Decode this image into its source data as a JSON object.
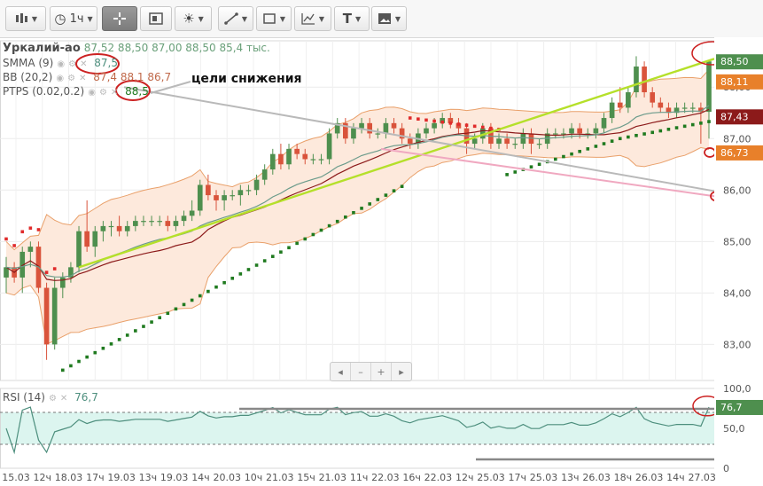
{
  "toolbar": {
    "timeframe_label": "1ч",
    "buttons": [
      "chart-type",
      "timeframe",
      "crosshair",
      "data-window",
      "themes",
      "line-tools",
      "shape-tools",
      "indicators",
      "text-tool",
      "screenshot"
    ]
  },
  "legend": {
    "symbol": "Уркалий-ао",
    "ohlcv": "87,52  88,50  87,00  88,50  85,4 тыс.",
    "smma_label": "SMMA (9)",
    "smma_value": "87,5",
    "bb_label": "BB (20,2)",
    "bb_values": "87,4  88,1  86,7",
    "ptps_label": "PTPS (0.02,0.2)",
    "ptps_value": "88,5",
    "rsi_label": "RSI (14)",
    "rsi_value": "76,7"
  },
  "annotation": "цели снижения",
  "nav": {
    "prev": "◂",
    "minus": "–",
    "plus": "+",
    "next": "▸"
  },
  "colors": {
    "up": "#4e8f4e",
    "down": "#d9533b",
    "band_fill": "#fde9dc",
    "band_line": "#e9a06a",
    "smma": "#6b9b8b",
    "bb_mid": "#8c1a1a",
    "ptps_up": "#1f7a1f",
    "ptps_down": "#e02b2b",
    "trend_yellow": "#b5e02a",
    "trend_gray": "#b9b9b9",
    "trend_pink": "#f0a8c0",
    "marker_red": "#cc2222",
    "arrow_orange": "#e8802a",
    "rsi_line": "#4e8f7e",
    "rsi_fill": "#dcf5ef"
  },
  "chart_data": {
    "type": "candlestick",
    "price_axis": {
      "ticks": [
        "83,00",
        "84,00",
        "85,00",
        "86,00",
        "87,00",
        "88,00"
      ],
      "range": [
        82.3,
        88.9
      ]
    },
    "price_labels": [
      {
        "text": "88,50",
        "value": 88.5,
        "color": "#4e8f4e"
      },
      {
        "text": "88,11",
        "value": 88.11,
        "color": "#e8802a"
      },
      {
        "text": "87,43",
        "value": 87.43,
        "color": "#8c1a1a"
      },
      {
        "text": "86,73",
        "value": 86.73,
        "color": "#e8802a"
      }
    ],
    "x_labels": [
      "15.03",
      "12ч",
      "18.03",
      "17ч",
      "19.03",
      "13ч",
      "19.03",
      "14ч",
      "20.03",
      "10ч",
      "21.03",
      "15ч",
      "21.03",
      "11ч",
      "22.03",
      "16ч",
      "22.03",
      "12ч",
      "25.03",
      "17ч",
      "25.03",
      "13ч",
      "26.03",
      "18ч",
      "26.03",
      "14ч",
      "27.03"
    ],
    "rsi_axis": {
      "ticks": [
        "100,0",
        "50,0",
        "0"
      ],
      "range": [
        0,
        100
      ],
      "levels": [
        70,
        30
      ]
    },
    "ohlc": [
      [
        84.3,
        84.7,
        84.0,
        84.5
      ],
      [
        84.5,
        84.6,
        84.2,
        84.3
      ],
      [
        84.3,
        84.9,
        84.0,
        84.8
      ],
      [
        84.8,
        85.0,
        84.5,
        84.9
      ],
      [
        84.9,
        85.0,
        84.0,
        84.1
      ],
      [
        84.1,
        84.2,
        82.7,
        83.0
      ],
      [
        83.0,
        84.3,
        82.9,
        84.1
      ],
      [
        84.1,
        84.4,
        83.9,
        84.3
      ],
      [
        84.3,
        84.6,
        84.2,
        84.5
      ],
      [
        84.5,
        85.3,
        84.4,
        85.2
      ],
      [
        85.2,
        85.8,
        84.8,
        84.9
      ],
      [
        84.9,
        85.3,
        84.7,
        85.2
      ],
      [
        85.2,
        85.4,
        85.0,
        85.3
      ],
      [
        85.3,
        85.4,
        85.1,
        85.3
      ],
      [
        85.3,
        85.5,
        85.1,
        85.2
      ],
      [
        85.2,
        85.4,
        85.1,
        85.3
      ],
      [
        85.3,
        85.5,
        85.2,
        85.4
      ],
      [
        85.4,
        85.5,
        85.3,
        85.4
      ],
      [
        85.4,
        85.5,
        85.3,
        85.4
      ],
      [
        85.4,
        85.5,
        85.3,
        85.4
      ],
      [
        85.4,
        85.5,
        85.2,
        85.3
      ],
      [
        85.3,
        85.5,
        85.2,
        85.4
      ],
      [
        85.4,
        85.6,
        85.3,
        85.5
      ],
      [
        85.5,
        85.8,
        85.4,
        85.6
      ],
      [
        85.6,
        86.2,
        85.5,
        86.1
      ],
      [
        86.1,
        86.3,
        85.8,
        85.9
      ],
      [
        85.9,
        86.0,
        85.6,
        85.8
      ],
      [
        85.8,
        86.0,
        85.6,
        85.9
      ],
      [
        85.9,
        86.0,
        85.8,
        85.9
      ],
      [
        85.9,
        86.1,
        85.7,
        86.0
      ],
      [
        86.0,
        86.1,
        85.9,
        86.0
      ],
      [
        86.0,
        86.3,
        85.9,
        86.2
      ],
      [
        86.2,
        86.5,
        86.1,
        86.4
      ],
      [
        86.4,
        86.8,
        86.3,
        86.7
      ],
      [
        86.7,
        86.9,
        86.4,
        86.5
      ],
      [
        86.5,
        86.9,
        86.4,
        86.8
      ],
      [
        86.8,
        86.9,
        86.6,
        86.7
      ],
      [
        86.7,
        86.8,
        86.5,
        86.6
      ],
      [
        86.6,
        86.7,
        86.5,
        86.6
      ],
      [
        86.6,
        86.7,
        86.5,
        86.6
      ],
      [
        86.6,
        87.2,
        86.5,
        87.1
      ],
      [
        87.1,
        87.4,
        87.0,
        87.3
      ],
      [
        87.3,
        87.4,
        86.9,
        87.0
      ],
      [
        87.0,
        87.3,
        86.9,
        87.2
      ],
      [
        87.2,
        87.4,
        87.1,
        87.3
      ],
      [
        87.3,
        87.4,
        87.0,
        87.1
      ],
      [
        87.1,
        87.2,
        87.0,
        87.1
      ],
      [
        87.1,
        87.4,
        87.0,
        87.3
      ],
      [
        87.3,
        87.4,
        87.1,
        87.2
      ],
      [
        87.2,
        87.3,
        86.9,
        87.0
      ],
      [
        87.0,
        87.1,
        86.8,
        86.9
      ],
      [
        86.9,
        87.2,
        86.8,
        87.1
      ],
      [
        87.1,
        87.3,
        87.0,
        87.2
      ],
      [
        87.2,
        87.4,
        87.1,
        87.3
      ],
      [
        87.3,
        87.5,
        87.2,
        87.4
      ],
      [
        87.4,
        87.5,
        87.2,
        87.3
      ],
      [
        87.3,
        87.4,
        87.1,
        87.2
      ],
      [
        87.2,
        87.3,
        86.7,
        86.9
      ],
      [
        86.9,
        87.1,
        86.8,
        87.0
      ],
      [
        87.0,
        87.3,
        86.9,
        87.2
      ],
      [
        87.2,
        87.3,
        86.8,
        86.9
      ],
      [
        86.9,
        87.1,
        86.8,
        87.0
      ],
      [
        87.0,
        87.1,
        86.8,
        86.9
      ],
      [
        86.9,
        87.0,
        86.8,
        86.9
      ],
      [
        86.9,
        87.2,
        86.8,
        87.1
      ],
      [
        87.1,
        87.2,
        86.7,
        86.9
      ],
      [
        86.9,
        87.0,
        86.8,
        86.9
      ],
      [
        86.9,
        87.2,
        86.8,
        87.1
      ],
      [
        87.1,
        87.2,
        87.0,
        87.1
      ],
      [
        87.1,
        87.2,
        87.0,
        87.1
      ],
      [
        87.1,
        87.3,
        87.0,
        87.2
      ],
      [
        87.2,
        87.3,
        87.0,
        87.1
      ],
      [
        87.1,
        87.2,
        87.0,
        87.1
      ],
      [
        87.1,
        87.3,
        87.0,
        87.2
      ],
      [
        87.2,
        87.5,
        87.1,
        87.4
      ],
      [
        87.4,
        87.8,
        87.3,
        87.7
      ],
      [
        87.7,
        88.0,
        87.5,
        87.6
      ],
      [
        87.6,
        88.0,
        87.5,
        87.9
      ],
      [
        87.9,
        88.6,
        87.8,
        88.4
      ],
      [
        88.4,
        88.5,
        87.8,
        87.9
      ],
      [
        87.9,
        88.0,
        87.6,
        87.7
      ],
      [
        87.7,
        87.8,
        87.5,
        87.6
      ],
      [
        87.6,
        87.7,
        87.4,
        87.5
      ],
      [
        87.5,
        87.7,
        87.4,
        87.6
      ],
      [
        87.6,
        87.7,
        87.5,
        87.6
      ],
      [
        87.6,
        87.7,
        87.5,
        87.6
      ],
      [
        87.6,
        87.7,
        86.9,
        87.52
      ],
      [
        87.52,
        88.5,
        87.0,
        88.5
      ]
    ]
  }
}
